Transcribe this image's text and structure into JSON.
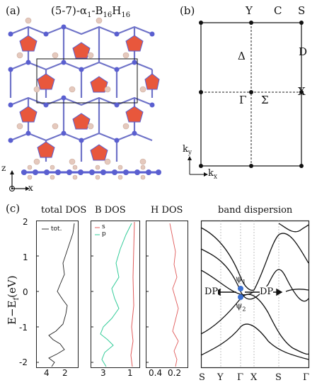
{
  "panel_a": {
    "label": "(a)",
    "formula_main": "(5-7)-α",
    "formula_sub1": "1",
    "formula_mid": "-B",
    "formula_sub2": "16",
    "formula_h": "H",
    "formula_sub3": "16",
    "axis_z": "z",
    "axis_x": "x"
  },
  "panel_b": {
    "label": "(b)",
    "points": {
      "Y": "Y",
      "C": "C",
      "S": "S",
      "D": "D",
      "X": "X",
      "Gamma": "Γ",
      "Sigma": "Σ",
      "Delta": "Δ"
    },
    "ky": "k",
    "ky_sub": "y",
    "kx": "k",
    "kx_sub": "x"
  },
  "panel_c": {
    "label": "(c)",
    "titles": [
      "total DOS",
      "B DOS",
      "H DOS",
      "band dispersion"
    ],
    "ylabel": "E−E",
    "ylabel_sub": "f",
    "ylabel_unit": "(eV)",
    "yticks": [
      "2",
      "1",
      "0",
      "-1",
      "-2"
    ],
    "total_xticks": [
      "4",
      "2"
    ],
    "b_xticks": [
      "3",
      "1"
    ],
    "h_xticks": [
      "0.4",
      "0.2"
    ],
    "legend_total": "tot.",
    "legend_s": "s",
    "legend_p": "p",
    "band_kpath": [
      "S",
      "Y",
      "Γ",
      "X",
      "S",
      "Γ"
    ],
    "dp_left": "DP",
    "dp_right": "DP",
    "psi1": "ψ",
    "psi1_sub": "1",
    "psi2": "ψ",
    "psi2_sub": "2"
  },
  "colors": {
    "boron": "#5a5fd0",
    "hydrogen": "#e5c9bd",
    "pentagon": "#e8573c",
    "s_curve": "#e05a5a",
    "p_curve": "#33cc99",
    "total_curve": "#222222"
  }
}
